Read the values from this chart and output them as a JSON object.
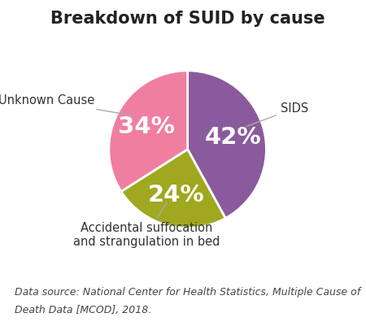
{
  "title": "Breakdown of SUID by cause",
  "slices": [
    42,
    24,
    34
  ],
  "labels": [
    "SIDS",
    "Accidental suffocation\nand strangulation in bed",
    "Unknown Cause"
  ],
  "pct_labels": [
    "42%",
    "24%",
    "34%"
  ],
  "colors": [
    "#8B5A9E",
    "#A0A820",
    "#F07EA0"
  ],
  "startangle": 90,
  "background_color": "#ffffff",
  "title_fontsize": 15,
  "pct_fontsize": 21,
  "label_fontsize": 10.5,
  "caption_fontsize": 9.0,
  "caption_normal": "Data source: National Center for Health Statistics, ",
  "caption_italic": "Multiple Cause of\nDeath Data [MCOD], 2018.",
  "caption_full_line1_normal": "Data source: National Center for Health Statistics, ",
  "caption_full_line1_italic": "Multiple Cause of",
  "caption_full_line2_italic": "Death Data [MCOD], 2018."
}
